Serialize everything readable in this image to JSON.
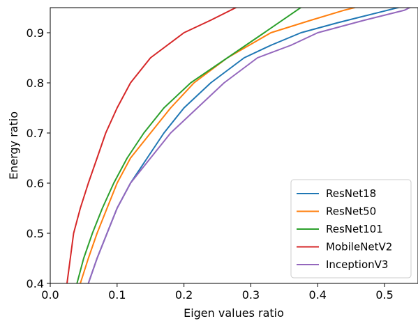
{
  "chart_data": {
    "type": "line",
    "xlabel": "Eigen values ratio",
    "ylabel": "Energy ratio",
    "xlim": [
      0.0,
      0.55
    ],
    "ylim": [
      0.4,
      0.95
    ],
    "xticks": [
      0.0,
      0.1,
      0.2,
      0.3,
      0.4,
      0.5
    ],
    "xtick_labels": [
      "0.0",
      "0.1",
      "0.2",
      "0.3",
      "0.4",
      "0.5"
    ],
    "yticks": [
      0.4,
      0.5,
      0.6,
      0.7,
      0.8,
      0.9
    ],
    "ytick_labels": [
      "0.4",
      "0.5",
      "0.6",
      "0.7",
      "0.8",
      "0.9"
    ],
    "grid": false,
    "legend_position": "bottom-right",
    "series": [
      {
        "name": "ResNet18",
        "color": "#1f77b4",
        "x": [
          0.057,
          0.07,
          0.085,
          0.1,
          0.12,
          0.145,
          0.17,
          0.2,
          0.24,
          0.29,
          0.33,
          0.375,
          0.43,
          0.49,
          0.535
        ],
        "y": [
          0.4,
          0.45,
          0.5,
          0.55,
          0.6,
          0.65,
          0.7,
          0.75,
          0.8,
          0.85,
          0.875,
          0.9,
          0.92,
          0.94,
          0.955
        ]
      },
      {
        "name": "ResNet50",
        "color": "#ff7f0e",
        "x": [
          0.045,
          0.057,
          0.07,
          0.085,
          0.1,
          0.12,
          0.15,
          0.18,
          0.215,
          0.265,
          0.33,
          0.39,
          0.44,
          0.455
        ],
        "y": [
          0.4,
          0.45,
          0.5,
          0.55,
          0.6,
          0.65,
          0.7,
          0.75,
          0.8,
          0.85,
          0.9,
          0.925,
          0.945,
          0.95
        ]
      },
      {
        "name": "ResNet101",
        "color": "#2ca02c",
        "x": [
          0.04,
          0.05,
          0.063,
          0.078,
          0.095,
          0.115,
          0.14,
          0.17,
          0.21,
          0.265,
          0.32,
          0.38
        ],
        "y": [
          0.4,
          0.45,
          0.5,
          0.55,
          0.6,
          0.65,
          0.7,
          0.75,
          0.8,
          0.85,
          0.9,
          0.955
        ]
      },
      {
        "name": "MobileNetV2",
        "color": "#d62728",
        "x": [
          0.025,
          0.035,
          0.045,
          0.057,
          0.07,
          0.083,
          0.1,
          0.12,
          0.15,
          0.2,
          0.24,
          0.285
        ],
        "y": [
          0.4,
          0.5,
          0.55,
          0.6,
          0.65,
          0.7,
          0.75,
          0.8,
          0.85,
          0.9,
          0.925,
          0.955
        ]
      },
      {
        "name": "InceptionV3",
        "color": "#9467bd",
        "x": [
          0.057,
          0.07,
          0.085,
          0.1,
          0.12,
          0.15,
          0.18,
          0.22,
          0.26,
          0.31,
          0.36,
          0.4,
          0.47,
          0.53,
          0.545
        ],
        "y": [
          0.4,
          0.45,
          0.5,
          0.55,
          0.6,
          0.65,
          0.7,
          0.75,
          0.8,
          0.85,
          0.875,
          0.9,
          0.925,
          0.945,
          0.955
        ]
      }
    ]
  }
}
